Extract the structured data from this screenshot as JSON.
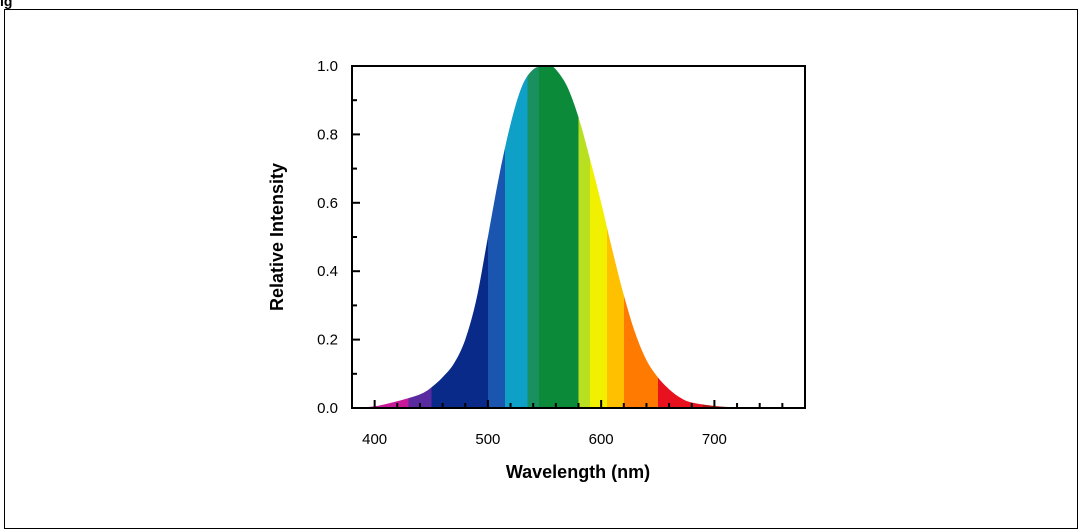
{
  "figure": {
    "heading": "ig"
  },
  "chart_data": {
    "type": "area",
    "xlabel": "Wavelength (nm)",
    "ylabel": "Relative Intensity",
    "xlim": [
      380,
      780
    ],
    "ylim": [
      0,
      1.0
    ],
    "x_ticks": [
      "400",
      "500",
      "600",
      "700"
    ],
    "y_ticks": [
      "0.0",
      "0.2",
      "0.4",
      "0.6",
      "0.8",
      "1.0"
    ],
    "x": [
      380,
      400,
      420,
      440,
      450,
      460,
      470,
      480,
      490,
      500,
      510,
      520,
      530,
      540,
      550,
      555,
      560,
      570,
      580,
      590,
      600,
      610,
      620,
      630,
      640,
      650,
      660,
      670,
      680,
      700,
      720,
      740,
      760,
      780
    ],
    "y": [
      0.0,
      0.005,
      0.02,
      0.04,
      0.06,
      0.09,
      0.13,
      0.2,
      0.32,
      0.5,
      0.68,
      0.83,
      0.94,
      0.99,
      1.0,
      1.0,
      0.99,
      0.94,
      0.85,
      0.73,
      0.6,
      0.46,
      0.33,
      0.22,
      0.14,
      0.09,
      0.055,
      0.03,
      0.016,
      0.006,
      0.002,
      0.001,
      0.0,
      0.0
    ],
    "fill_colors": [
      {
        "from": 380,
        "to": 430,
        "color": "#c8199a"
      },
      {
        "from": 430,
        "to": 450,
        "color": "#5a2aa0"
      },
      {
        "from": 450,
        "to": 500,
        "color": "#0a2a8a"
      },
      {
        "from": 500,
        "to": 515,
        "color": "#1a55b0"
      },
      {
        "from": 515,
        "to": 535,
        "color": "#0fa0c8"
      },
      {
        "from": 535,
        "to": 545,
        "color": "#1a9060"
      },
      {
        "from": 545,
        "to": 580,
        "color": "#0b8a3a"
      },
      {
        "from": 580,
        "to": 590,
        "color": "#b8e020"
      },
      {
        "from": 590,
        "to": 605,
        "color": "#f0f000"
      },
      {
        "from": 605,
        "to": 620,
        "color": "#ffc000"
      },
      {
        "from": 620,
        "to": 650,
        "color": "#ff7a00"
      },
      {
        "from": 650,
        "to": 690,
        "color": "#e8121e"
      },
      {
        "from": 690,
        "to": 780,
        "color": "#b01010"
      }
    ]
  }
}
